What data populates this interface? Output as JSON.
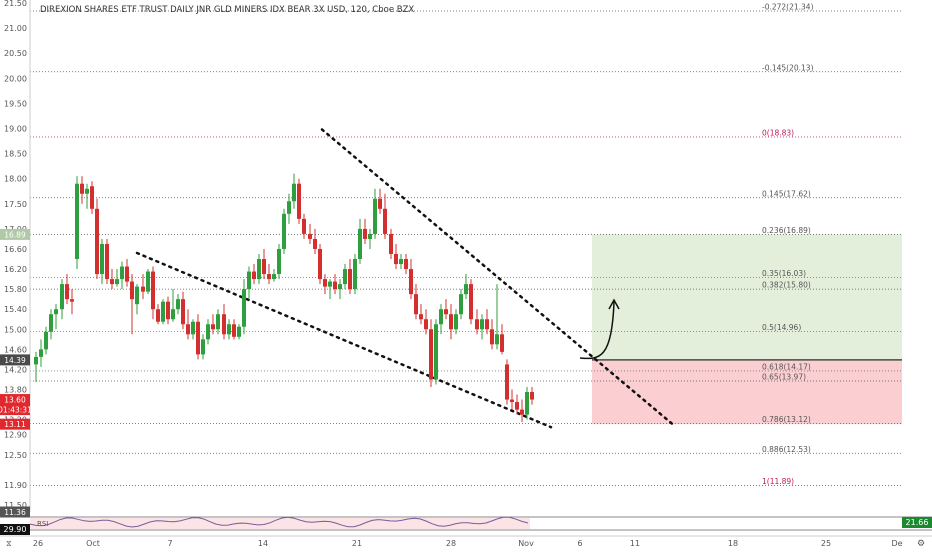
{
  "chart_data": {
    "type": "candlestick",
    "title": "DIREXION SHARES ETF TRUST DAILY JNR GLD MINERS IDX BEAR 3X USD, 120, Cboe BZX",
    "ylim": [
      11.36,
      21.55
    ],
    "y_ticks": [
      11.5,
      11.9,
      12.5,
      12.9,
      13.2,
      13.8,
      14.2,
      14.6,
      15.0,
      15.4,
      15.8,
      16.2,
      16.6,
      17.0,
      17.5,
      18.0,
      18.5,
      19.0,
      19.5,
      20.0,
      20.5,
      21.0,
      21.5
    ],
    "y_tick_labels": [
      "11.50",
      "11.90",
      "12.50",
      "12.90",
      "13.20",
      "13.80",
      "14.20",
      "14.60",
      "15.00",
      "15.40",
      "15.80",
      "16.20",
      "16.60",
      "17.00",
      "17.50",
      "18.00",
      "18.50",
      "19.00",
      "19.50",
      "20.00",
      "20.50",
      "21.00",
      "21.50"
    ],
    "x_tick_labels": [
      "26",
      "Oct",
      "7",
      "14",
      "21",
      "28",
      "Nov",
      "6",
      "11",
      "18",
      "25",
      "De"
    ],
    "price_badges": [
      {
        "label": "16.89",
        "value": 16.89,
        "color": "#b2c9a8"
      },
      {
        "label": "14.39",
        "value": 14.39,
        "color": "#4a4a4a"
      },
      {
        "label": "13.60",
        "value": 13.6,
        "color": "#e0282e"
      },
      {
        "label": "01:43:31",
        "value": 13.4,
        "color": "#e0282e"
      },
      {
        "label": "13.11",
        "value": 13.11,
        "color": "#e0282e"
      },
      {
        "label": "11.36",
        "value": 11.36,
        "color": "#555555"
      }
    ],
    "fib_levels": [
      {
        "label": "-0.272(21.34)",
        "value": 21.34,
        "color": "#555555"
      },
      {
        "label": "-0.145(20.13)",
        "value": 20.13,
        "color": "#555555"
      },
      {
        "label": "0(18.83)",
        "value": 18.83,
        "color": "#c2185b"
      },
      {
        "label": "0.145(17.62)",
        "value": 17.62,
        "color": "#555555"
      },
      {
        "label": "0.236(16.89)",
        "value": 16.89,
        "color": "#555555"
      },
      {
        "label": "0.35(16.03)",
        "value": 16.03,
        "color": "#555555"
      },
      {
        "label": "0.382(15.80)",
        "value": 15.8,
        "color": "#555555"
      },
      {
        "label": "0.5(14.96)",
        "value": 14.96,
        "color": "#555555"
      },
      {
        "label": "0.618(14.17)",
        "value": 14.17,
        "color": "#555555"
      },
      {
        "label": "0.65(13.97)",
        "value": 13.97,
        "color": "#555555"
      },
      {
        "label": "0.786(13.12)",
        "value": 13.12,
        "color": "#555555"
      },
      {
        "label": "0.886(12.53)",
        "value": 12.53,
        "color": "#555555"
      },
      {
        "label": "1(11.89)",
        "value": 11.89,
        "color": "#c2185b"
      }
    ],
    "position": {
      "entry": 14.39,
      "target": 16.89,
      "stop": 13.11
    },
    "channel": {
      "upper": {
        "x0": 322,
        "v0": 18.98,
        "x1": 672,
        "v1": 13.12
      },
      "lower": {
        "x0": 137,
        "v0": 16.52,
        "x1": 551,
        "v1": 13.05
      }
    },
    "candles": [
      [
        36,
        14.3,
        14.55,
        13.95,
        14.45
      ],
      [
        41,
        14.45,
        14.8,
        14.25,
        14.6
      ],
      [
        46,
        14.6,
        15.05,
        14.5,
        14.95
      ],
      [
        51,
        14.95,
        15.4,
        14.8,
        15.3
      ],
      [
        56,
        15.3,
        15.5,
        15.0,
        15.4
      ],
      [
        62,
        15.4,
        16.0,
        15.2,
        15.9
      ],
      [
        67,
        15.9,
        16.1,
        15.5,
        15.6
      ],
      [
        72,
        15.6,
        15.8,
        15.3,
        15.55
      ],
      [
        77,
        16.4,
        18.05,
        16.2,
        17.9
      ],
      [
        82,
        17.9,
        18.05,
        17.5,
        17.7
      ],
      [
        87,
        17.7,
        17.9,
        17.4,
        17.8
      ],
      [
        92,
        17.85,
        17.95,
        17.3,
        17.4
      ],
      [
        97,
        17.4,
        17.6,
        16.0,
        16.1
      ],
      [
        102,
        16.1,
        16.8,
        15.9,
        16.7
      ],
      [
        107,
        16.7,
        16.8,
        15.9,
        16.0
      ],
      [
        112,
        16.0,
        16.2,
        15.8,
        15.9
      ],
      [
        117,
        15.9,
        16.2,
        15.85,
        16.0
      ],
      [
        122,
        16.0,
        16.35,
        15.8,
        16.25
      ],
      [
        127,
        16.25,
        16.4,
        15.85,
        15.95
      ],
      [
        132,
        15.95,
        16.1,
        14.9,
        15.6
      ],
      [
        137,
        15.5,
        15.9,
        15.3,
        15.85
      ],
      [
        143,
        15.85,
        16.1,
        15.6,
        15.75
      ],
      [
        148,
        15.75,
        16.2,
        15.7,
        16.15
      ],
      [
        153,
        16.15,
        16.25,
        15.2,
        15.4
      ],
      [
        158,
        15.4,
        15.5,
        15.1,
        15.15
      ],
      [
        163,
        15.15,
        15.6,
        15.1,
        15.55
      ],
      [
        168,
        15.55,
        15.65,
        15.1,
        15.2
      ],
      [
        173,
        15.2,
        15.8,
        15.15,
        15.4
      ],
      [
        178,
        15.4,
        15.7,
        15.3,
        15.6
      ],
      [
        183,
        15.6,
        15.75,
        15.0,
        15.1
      ],
      [
        188,
        15.1,
        15.4,
        14.8,
        14.9
      ],
      [
        193,
        14.9,
        15.2,
        14.8,
        15.15
      ],
      [
        198,
        15.15,
        15.3,
        14.4,
        14.5
      ],
      [
        203,
        14.5,
        14.9,
        14.4,
        14.8
      ],
      [
        208,
        14.8,
        15.2,
        14.7,
        15.1
      ],
      [
        213,
        15.1,
        15.3,
        14.9,
        15.0
      ],
      [
        218,
        15.0,
        15.4,
        14.9,
        15.3
      ],
      [
        224,
        15.3,
        15.5,
        14.8,
        14.9
      ],
      [
        229,
        14.9,
        15.2,
        14.8,
        15.1
      ],
      [
        234,
        15.1,
        15.2,
        14.8,
        14.85
      ],
      [
        239,
        14.85,
        15.1,
        14.8,
        15.05
      ],
      [
        244,
        15.05,
        16.0,
        14.9,
        15.8
      ],
      [
        249,
        15.8,
        16.25,
        15.6,
        16.15
      ],
      [
        254,
        16.15,
        16.3,
        15.9,
        16.0
      ],
      [
        259,
        16.0,
        16.5,
        15.9,
        16.4
      ],
      [
        264,
        16.4,
        16.6,
        16.0,
        16.1
      ],
      [
        269,
        16.1,
        16.3,
        15.9,
        16.0
      ],
      [
        274,
        16.0,
        16.2,
        15.95,
        16.1
      ],
      [
        279,
        16.1,
        16.7,
        16.0,
        16.6
      ],
      [
        284,
        16.6,
        17.4,
        16.5,
        17.3
      ],
      [
        289,
        17.3,
        17.7,
        17.1,
        17.55
      ],
      [
        294,
        17.55,
        18.1,
        17.4,
        17.9
      ],
      [
        299,
        17.9,
        18.0,
        17.1,
        17.2
      ],
      [
        304,
        17.2,
        17.3,
        16.8,
        16.9
      ],
      [
        310,
        16.9,
        17.1,
        16.7,
        16.8
      ],
      [
        315,
        16.8,
        17.0,
        16.5,
        16.6
      ],
      [
        320,
        16.6,
        16.7,
        15.9,
        16.0
      ],
      [
        325,
        16.0,
        16.1,
        15.7,
        15.85
      ],
      [
        330,
        15.85,
        16.0,
        15.6,
        15.95
      ],
      [
        335,
        15.95,
        16.1,
        15.7,
        15.8
      ],
      [
        340,
        15.8,
        16.0,
        15.6,
        15.9
      ],
      [
        345,
        15.9,
        16.3,
        15.8,
        16.2
      ],
      [
        350,
        16.2,
        16.4,
        15.7,
        15.8
      ],
      [
        355,
        15.8,
        16.5,
        15.7,
        16.4
      ],
      [
        360,
        16.4,
        17.2,
        16.3,
        17.0
      ],
      [
        365,
        17.0,
        17.2,
        16.7,
        16.8
      ],
      [
        370,
        16.8,
        17.0,
        16.6,
        16.9
      ],
      [
        375,
        16.9,
        17.8,
        16.8,
        17.6
      ],
      [
        380,
        17.6,
        17.8,
        17.3,
        17.4
      ],
      [
        385,
        17.4,
        17.7,
        16.8,
        16.9
      ],
      [
        391,
        16.9,
        17.0,
        16.4,
        16.5
      ],
      [
        396,
        16.5,
        16.7,
        16.2,
        16.3
      ],
      [
        401,
        16.3,
        16.5,
        16.2,
        16.4
      ],
      [
        406,
        16.4,
        16.5,
        16.1,
        16.2
      ],
      [
        411,
        16.2,
        16.4,
        15.6,
        15.7
      ],
      [
        416,
        15.7,
        15.9,
        15.2,
        15.3
      ],
      [
        421,
        15.3,
        15.5,
        15.1,
        15.2
      ],
      [
        426,
        15.2,
        15.4,
        14.9,
        15.0
      ],
      [
        431,
        15.0,
        15.2,
        13.85,
        14.0
      ],
      [
        436,
        14.0,
        15.2,
        13.9,
        15.1
      ],
      [
        441,
        15.1,
        15.5,
        14.9,
        15.4
      ],
      [
        446,
        15.4,
        15.6,
        15.2,
        15.3
      ],
      [
        451,
        15.3,
        15.5,
        14.8,
        15.0
      ],
      [
        456,
        15.0,
        15.4,
        14.9,
        15.3
      ],
      [
        461,
        15.3,
        15.8,
        15.2,
        15.7
      ],
      [
        466,
        15.7,
        16.1,
        15.6,
        15.9
      ],
      [
        471,
        15.9,
        16.0,
        15.1,
        15.2
      ],
      [
        477,
        15.2,
        15.4,
        14.9,
        15.0
      ],
      [
        482,
        15.0,
        15.3,
        14.8,
        15.2
      ],
      [
        487,
        15.2,
        15.4,
        14.9,
        15.0
      ],
      [
        492,
        15.0,
        15.2,
        14.6,
        14.7
      ],
      [
        497,
        14.7,
        15.9,
        14.6,
        14.9
      ],
      [
        502,
        14.9,
        15.1,
        14.5,
        14.55
      ],
      [
        507,
        14.3,
        14.4,
        13.5,
        13.6
      ],
      [
        512,
        13.6,
        13.8,
        13.4,
        13.55
      ],
      [
        517,
        13.55,
        13.7,
        13.3,
        13.4
      ],
      [
        522,
        13.4,
        13.6,
        13.15,
        13.3
      ],
      [
        527,
        13.3,
        13.85,
        13.2,
        13.75
      ],
      [
        532,
        13.75,
        13.85,
        13.5,
        13.6
      ]
    ],
    "rsi": {
      "label": "RSI",
      "badge_value": "29.90",
      "right_badge": "21.66"
    }
  }
}
